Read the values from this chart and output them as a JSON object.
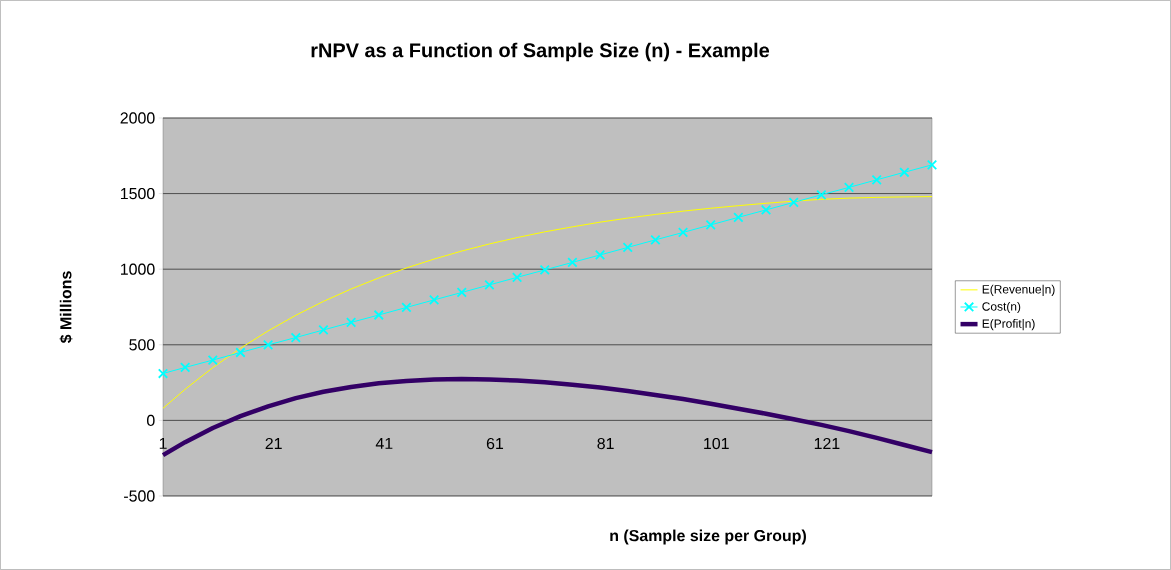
{
  "chart_data": {
    "type": "line",
    "title": "rNPV as a Function of Sample Size (n) - Example",
    "xlabel": "n (Sample size per Group)",
    "ylabel": "$ Millions",
    "x": [
      1,
      5,
      10,
      15,
      20,
      25,
      30,
      35,
      40,
      45,
      50,
      55,
      60,
      65,
      70,
      75,
      80,
      85,
      90,
      95,
      100,
      105,
      110,
      115,
      120,
      125,
      130,
      135,
      140
    ],
    "series": [
      {
        "name": "E(Revenue|n)",
        "color": "#ffff00",
        "values": [
          80,
          206,
          349,
          477,
          592,
          695,
          787,
          869,
          942,
          1008,
          1067,
          1120,
          1167,
          1209,
          1247,
          1280,
          1311,
          1338,
          1362,
          1384,
          1403,
          1420,
          1436,
          1450,
          1462,
          1470,
          1475,
          1478,
          1480
        ]
      },
      {
        "name": "Cost(n)",
        "color": "#00ffff",
        "marker": "cross",
        "values": [
          310,
          350,
          399,
          449,
          499,
          548,
          598,
          648,
          697,
          747,
          797,
          846,
          896,
          946,
          995,
          1045,
          1094,
          1144,
          1194,
          1243,
          1293,
          1343,
          1392,
          1442,
          1492,
          1541,
          1591,
          1641,
          1690
        ]
      },
      {
        "name": "E(Profit|n)",
        "color": "#330066",
        "values": [
          -230,
          -144,
          -50,
          28,
          93,
          147,
          189,
          221,
          245,
          261,
          270,
          274,
          271,
          263,
          252,
          235,
          217,
          194,
          168,
          141,
          110,
          77,
          44,
          8,
          -30,
          -71,
          -116,
          -163,
          -210
        ]
      }
    ],
    "xlim": [
      1,
      140
    ],
    "xticks": [
      1,
      21,
      41,
      61,
      81,
      101,
      121
    ],
    "ylim": [
      -500,
      2000
    ],
    "yticks": [
      -500,
      0,
      500,
      1000,
      1500,
      2000
    ],
    "grid": "y",
    "legend": "right",
    "line_style": "solid"
  }
}
